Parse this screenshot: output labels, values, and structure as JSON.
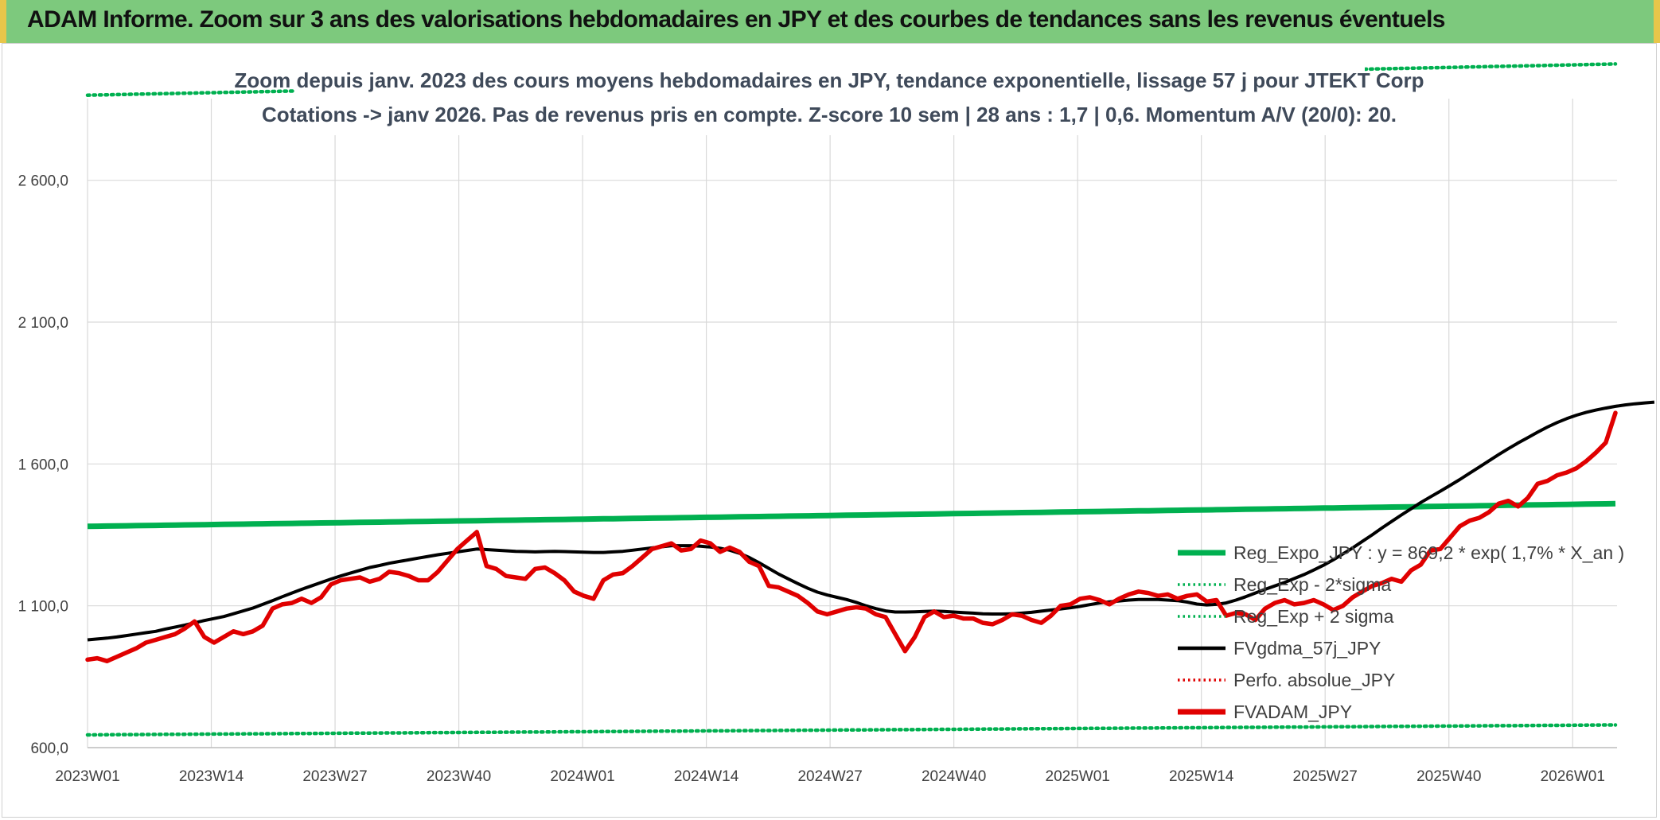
{
  "header": {
    "title": "ADAM Informe. Zoom sur 3 ans des valorisations hebdomadaires en JPY et des courbes de tendances sans les revenus éventuels"
  },
  "chart_data": {
    "type": "line",
    "title_lines": [
      "Zoom depuis janv. 2023 des cours moyens hebdomadaires en JPY, tendance exponentielle, lissage 57 j pour JTEKT Corp",
      "Cotations -> janv 2026. Pas de revenus pris en compte. Z-score 10 sem | 28 ans : 1,7 | 0,6. Momentum A/V (20/0): 20."
    ],
    "x_ticks": [
      "2023W01",
      "2023W14",
      "2023W27",
      "2023W40",
      "2024W01",
      "2024W14",
      "2024W27",
      "2024W40",
      "2025W01",
      "2025W14",
      "2025W27",
      "2025W40",
      "2026W01"
    ],
    "y_ticks": [
      "600,0",
      "1 100,0",
      "1 600,0",
      "2 100,0",
      "2 600,0"
    ],
    "ylim": [
      600,
      3000
    ],
    "grid": true,
    "legend_position": "right",
    "colors": {
      "reg_expo": "#00b050",
      "sigma": "#00b050",
      "gdma": "#000000",
      "perfo": "#e00000",
      "fvadam": "#e00000"
    },
    "legend": [
      {
        "label": "Reg_Expo_JPY : y = 869,2 * exp( 1,7% *  X_an )",
        "style": "solid-thick",
        "color": "#00b050"
      },
      {
        "label": "Reg_Exp - 2*sigma",
        "style": "dotted",
        "color": "#00b050"
      },
      {
        "label": "Reg_Exp + 2 sigma",
        "style": "dotted",
        "color": "#00b050"
      },
      {
        "label": "FVgdma_57j_JPY",
        "style": "solid",
        "color": "#000000"
      },
      {
        "label": "Perfo. absolue_JPY",
        "style": "dotted",
        "color": "#e00000"
      },
      {
        "label": "FVADAM_JPY",
        "style": "solid-thick",
        "color": "#e00000"
      }
    ],
    "series": [
      {
        "name": "FVADAM_JPY",
        "x": [
          0,
          1,
          2,
          3,
          4,
          5,
          6,
          7,
          8,
          9,
          10,
          11,
          12,
          13,
          14,
          15,
          16,
          17,
          18,
          19,
          20,
          21,
          22,
          23,
          24,
          25,
          26,
          27,
          28,
          29,
          30,
          31,
          32,
          33,
          34,
          35,
          36,
          37,
          38,
          39,
          40,
          41,
          42,
          43,
          44,
          45,
          46,
          47,
          48,
          49,
          50,
          51,
          52,
          53,
          54,
          55,
          56,
          57,
          58,
          59,
          60,
          61,
          62,
          63,
          64,
          65,
          66,
          67,
          68,
          69,
          70,
          71,
          72,
          73,
          74,
          75,
          76,
          77,
          78,
          79,
          80,
          81,
          82,
          83,
          84,
          85,
          86,
          87,
          88,
          89,
          90,
          91,
          92,
          93,
          94,
          95,
          96,
          97,
          98,
          99,
          100,
          101,
          102,
          103,
          104,
          105,
          106,
          107,
          108,
          109,
          110,
          111,
          112,
          113,
          114,
          115,
          116,
          117,
          118,
          119,
          120,
          121,
          122,
          123,
          124,
          125,
          126,
          127,
          128,
          129,
          130,
          131,
          132,
          133,
          134,
          135,
          136,
          137,
          138,
          139,
          140,
          141,
          142,
          143,
          144,
          145,
          146,
          147,
          148,
          149,
          150,
          151,
          152,
          153,
          154,
          155,
          156,
          157
        ],
        "values": [
          910,
          915,
          905,
          920,
          935,
          950,
          970,
          980,
          990,
          1000,
          1020,
          1045,
          990,
          970,
          990,
          1010,
          1000,
          1010,
          1030,
          1090,
          1105,
          1110,
          1125,
          1110,
          1130,
          1175,
          1190,
          1195,
          1200,
          1185,
          1195,
          1220,
          1215,
          1205,
          1190,
          1190,
          1220,
          1260,
          1300,
          1330,
          1360,
          1240,
          1230,
          1205,
          1200,
          1195,
          1230,
          1235,
          1215,
          1190,
          1150,
          1135,
          1125,
          1190,
          1210,
          1215,
          1240,
          1270,
          1300,
          1310,
          1320,
          1295,
          1300,
          1330,
          1320,
          1290,
          1305,
          1290,
          1255,
          1240,
          1170,
          1165,
          1150,
          1135,
          1110,
          1080,
          1070,
          1080,
          1090,
          1095,
          1090,
          1070,
          1060,
          1000,
          940,
          990,
          1060,
          1080,
          1060,
          1065,
          1055,
          1055,
          1040,
          1035,
          1050,
          1070,
          1065,
          1050,
          1040,
          1065,
          1100,
          1105,
          1125,
          1130,
          1120,
          1105,
          1125,
          1140,
          1150,
          1145,
          1135,
          1140,
          1125,
          1135,
          1140,
          1115,
          1120,
          1065,
          1075,
          1070,
          1050,
          1090,
          1110,
          1120,
          1105,
          1110,
          1120,
          1105,
          1085,
          1100,
          1130,
          1150,
          1170,
          1180,
          1195,
          1185,
          1225,
          1245,
          1295,
          1300,
          1340,
          1380,
          1400,
          1410,
          1430,
          1460,
          1470,
          1450,
          1480,
          1530,
          1540,
          1560,
          1570,
          1585,
          1610,
          1640,
          1675,
          1780
        ],
        "color": "#e00000"
      },
      {
        "name": "FVgdma_57j_JPY",
        "values": [
          980,
          983,
          986,
          990,
          995,
          1000,
          1005,
          1010,
          1018,
          1025,
          1032,
          1040,
          1048,
          1055,
          1062,
          1072,
          1082,
          1092,
          1105,
          1118,
          1132,
          1145,
          1158,
          1170,
          1182,
          1194,
          1205,
          1215,
          1225,
          1235,
          1242,
          1250,
          1256,
          1262,
          1268,
          1274,
          1280,
          1285,
          1290,
          1295,
          1300,
          1298,
          1296,
          1294,
          1292,
          1291,
          1290,
          1291,
          1292,
          1291,
          1290,
          1289,
          1288,
          1288,
          1290,
          1292,
          1296,
          1300,
          1304,
          1308,
          1312,
          1312,
          1312,
          1310,
          1307,
          1303,
          1296,
          1285,
          1270,
          1252,
          1232,
          1212,
          1195,
          1178,
          1162,
          1148,
          1138,
          1130,
          1122,
          1112,
          1100,
          1090,
          1082,
          1078,
          1078,
          1079,
          1080,
          1081,
          1080,
          1078,
          1076,
          1074,
          1072,
          1071,
          1071,
          1072,
          1074,
          1077,
          1081,
          1085,
          1089,
          1093,
          1098,
          1104,
          1110,
          1114,
          1117,
          1120,
          1122,
          1122,
          1122,
          1120,
          1118,
          1113,
          1106,
          1103,
          1105,
          1110,
          1120,
          1132,
          1145,
          1158,
          1170,
          1182,
          1196,
          1210,
          1226,
          1243,
          1262,
          1283,
          1304,
          1327,
          1350,
          1374,
          1397,
          1420,
          1442,
          1464,
          1484,
          1504,
          1524,
          1545,
          1567,
          1589,
          1611,
          1633,
          1654,
          1674,
          1693,
          1712,
          1730,
          1746,
          1760,
          1772,
          1782,
          1790,
          1797,
          1803,
          1808,
          1812,
          1815,
          1818
        ],
        "color": "#000000"
      },
      {
        "name": "Reg_Expo_JPY : y = 869,2 * exp( 1,7% *  X_an )",
        "values_range": [
          1380,
          1460
        ],
        "color": "#00b050"
      },
      {
        "name": "Reg_Exp - 2*sigma",
        "values_range": [
          645,
          680
        ],
        "color": "#00b050"
      },
      {
        "name": "Reg_Exp + 2 sigma",
        "values_range": [
          2900,
          3010
        ],
        "color": "#00b050"
      }
    ]
  }
}
